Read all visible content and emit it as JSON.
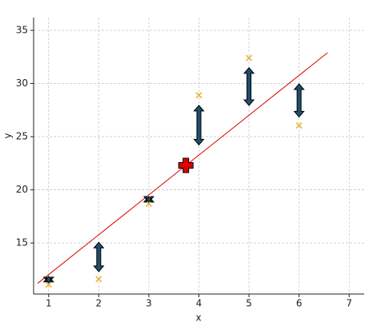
{
  "chart_data": {
    "type": "residual-scatter",
    "x_label": "x",
    "y_label": "y",
    "x": [
      1,
      2,
      3,
      4,
      5,
      6
    ],
    "series": [
      {
        "color": "#e8b43a",
        "values": [
          11.1,
          11.6,
          18.7,
          28.9,
          32.4,
          26.05
        ]
      }
    ],
    "fit": {
      "color": "#dd0000",
      "x": [
        0.78,
        6.57
      ],
      "y": [
        11.2,
        32.9
      ]
    },
    "center": {
      "color": "#dd0000",
      "x": 3.74,
      "y": 22.3
    },
    "arrow_color": "#1f4e6e",
    "xlim": [
      0.7,
      7.3
    ],
    "ylim": [
      10.2,
      36.2
    ],
    "xticks": [
      1,
      2,
      3,
      4,
      5,
      6,
      7
    ],
    "yticks": [
      15,
      20,
      25,
      30,
      35
    ],
    "grid": true
  }
}
